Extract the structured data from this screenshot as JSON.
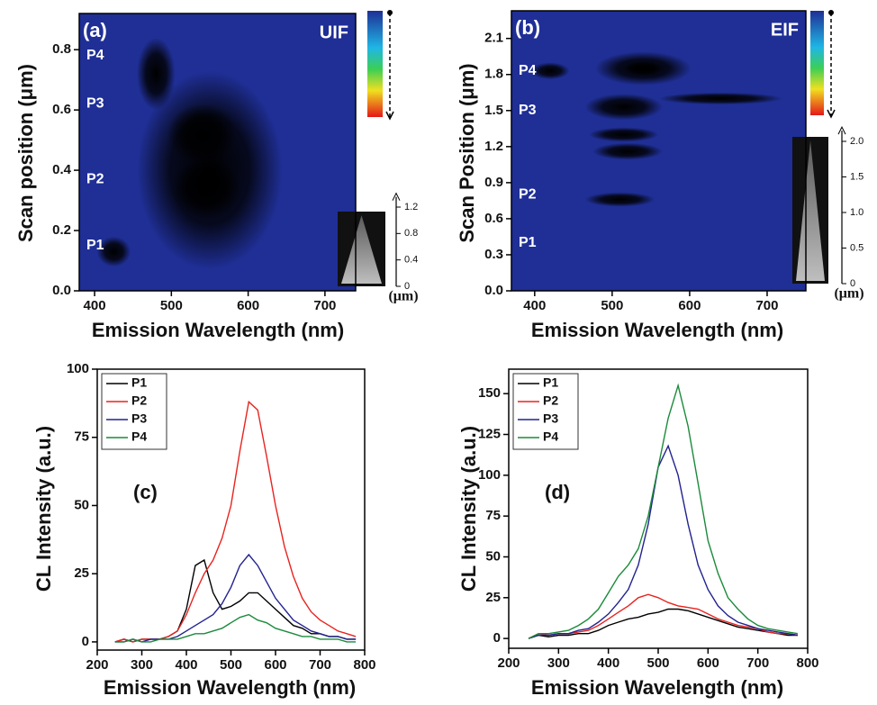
{
  "chart_data": [
    {
      "type": "heatmap",
      "panel_label": "(a)",
      "mode_label": "UIF",
      "x_label": "Emission Wavelength (nm)",
      "y_label": "Scan position (μm)",
      "xlim": [
        380,
        740
      ],
      "xticks": [
        400,
        500,
        600,
        700
      ],
      "ylim": [
        0,
        0.92
      ],
      "yticks": [
        {
          "value": 0,
          "label": "0.0"
        },
        0.2,
        0.4,
        0.6,
        0.8
      ],
      "background": "#1f2f96",
      "spots": [
        {
          "x": 550,
          "y": 0.4,
          "dx": 95,
          "dy": 0.33,
          "intensity": 0.35
        },
        {
          "x": 540,
          "y": 0.52,
          "dx": 45,
          "dy": 0.1,
          "intensity": 0.55
        },
        {
          "x": 545,
          "y": 0.34,
          "dx": 45,
          "dy": 0.1,
          "intensity": 0.52
        },
        {
          "x": 425,
          "y": 0.13,
          "dx": 22,
          "dy": 0.05,
          "intensity": 0.42
        },
        {
          "x": 480,
          "y": 0.72,
          "dx": 25,
          "dy": 0.12,
          "intensity": 0.2
        }
      ],
      "annotations": [
        {
          "text": "P4",
          "y": 0.78
        },
        {
          "text": "P3",
          "y": 0.62
        },
        {
          "text": "P2",
          "y": 0.37
        },
        {
          "text": "P1",
          "y": 0.15
        }
      ],
      "inset": {
        "ylim": [
          0,
          1.3
        ],
        "yticks": [
          0,
          0.4,
          0.8,
          1.2
        ],
        "label": "(μm)"
      }
    },
    {
      "type": "heatmap",
      "panel_label": "(b)",
      "mode_label": "EIF",
      "x_label": "Emission Wavelength (nm)",
      "y_label": "Scan Position (μm)",
      "xlim": [
        370,
        750
      ],
      "xticks": [
        400,
        500,
        600,
        700
      ],
      "ylim": [
        0,
        2.33
      ],
      "yticks": [
        {
          "value": 0,
          "label": "0.0"
        },
        0.3,
        0.6,
        0.9,
        1.2,
        1.5,
        1.8,
        2.1
      ],
      "background": "#1f2f96",
      "spots": [
        {
          "x": 540,
          "y": 1.85,
          "dx": 62,
          "dy": 0.14,
          "intensity": 0.6
        },
        {
          "x": 540,
          "y": 1.85,
          "dx": 25,
          "dy": 0.06,
          "intensity": 1.0
        },
        {
          "x": 515,
          "y": 1.53,
          "dx": 50,
          "dy": 0.11,
          "intensity": 0.6
        },
        {
          "x": 515,
          "y": 1.3,
          "dx": 45,
          "dy": 0.06,
          "intensity": 0.35
        },
        {
          "x": 520,
          "y": 1.16,
          "dx": 45,
          "dy": 0.07,
          "intensity": 0.38
        },
        {
          "x": 420,
          "y": 1.83,
          "dx": 25,
          "dy": 0.07,
          "intensity": 0.3
        },
        {
          "x": 510,
          "y": 0.76,
          "dx": 45,
          "dy": 0.06,
          "intensity": 0.2
        },
        {
          "x": 640,
          "y": 1.6,
          "dx": 80,
          "dy": 0.05,
          "intensity": 0.15
        }
      ],
      "annotations": [
        {
          "text": "P4",
          "y": 1.83
        },
        {
          "text": "P3",
          "y": 1.5
        },
        {
          "text": "P2",
          "y": 0.8
        },
        {
          "text": "P1",
          "y": 0.4
        }
      ],
      "inset": {
        "ylim": [
          0,
          2.1
        ],
        "yticks": [
          0,
          0.5,
          {
            "value": 1,
            "label": "1.0"
          },
          1.5,
          {
            "value": 2,
            "label": "2.0"
          }
        ],
        "label": "(μm)"
      }
    },
    {
      "type": "line",
      "panel_label": "(c)",
      "x_label": "Emission Wavelength (nm)",
      "y_label": "CL Intensity (a.u.)",
      "xlim": [
        200,
        800
      ],
      "xticks": [
        200,
        300,
        400,
        500,
        600,
        700,
        800
      ],
      "ylim": [
        -3,
        100
      ],
      "yticks": [
        0,
        25,
        50,
        75,
        100
      ],
      "x": [
        240,
        260,
        280,
        300,
        320,
        340,
        360,
        380,
        400,
        420,
        440,
        460,
        480,
        500,
        520,
        540,
        560,
        580,
        600,
        620,
        640,
        660,
        680,
        700,
        720,
        740,
        760,
        780
      ],
      "series": [
        {
          "name": "P1",
          "color": "#000000",
          "values": [
            0,
            1,
            0,
            1,
            1,
            1,
            2,
            4,
            12,
            28,
            30,
            18,
            12,
            13,
            15,
            18,
            18,
            15,
            12,
            9,
            6,
            5,
            3,
            3,
            2,
            2,
            1,
            1
          ]
        },
        {
          "name": "P2",
          "color": "#e8231f",
          "values": [
            0,
            1,
            0,
            1,
            1,
            1,
            2,
            4,
            10,
            18,
            25,
            30,
            38,
            50,
            70,
            88,
            85,
            68,
            50,
            35,
            24,
            16,
            11,
            8,
            6,
            4,
            3,
            2
          ]
        },
        {
          "name": "P3",
          "color": "#22228f",
          "values": [
            0,
            0,
            1,
            0,
            1,
            1,
            1,
            2,
            4,
            6,
            8,
            10,
            14,
            20,
            28,
            32,
            28,
            22,
            16,
            12,
            8,
            6,
            4,
            3,
            2,
            2,
            1,
            1
          ]
        },
        {
          "name": "P4",
          "color": "#1b8a3a",
          "values": [
            0,
            0,
            1,
            0,
            0,
            1,
            1,
            1,
            2,
            3,
            3,
            4,
            5,
            7,
            9,
            10,
            8,
            7,
            5,
            4,
            3,
            2,
            2,
            1,
            1,
            1,
            0,
            0
          ]
        }
      ]
    },
    {
      "type": "line",
      "panel_label": "(d)",
      "x_label": "Emission Wavelength (nm)",
      "y_label": "CL Intensity (a.u.)",
      "xlim": [
        200,
        800
      ],
      "xticks": [
        200,
        300,
        400,
        500,
        600,
        700,
        800
      ],
      "ylim": [
        -6,
        165
      ],
      "yticks": [
        0,
        25,
        50,
        75,
        100,
        125,
        150
      ],
      "x": [
        240,
        260,
        280,
        300,
        320,
        340,
        360,
        380,
        400,
        420,
        440,
        460,
        480,
        500,
        520,
        540,
        560,
        580,
        600,
        620,
        640,
        660,
        680,
        700,
        720,
        740,
        760,
        780
      ],
      "series": [
        {
          "name": "P1",
          "color": "#000000",
          "values": [
            0,
            2,
            1,
            2,
            2,
            3,
            3,
            5,
            8,
            10,
            12,
            13,
            15,
            16,
            18,
            18,
            17,
            15,
            13,
            11,
            9,
            7,
            6,
            5,
            4,
            3,
            2,
            2
          ]
        },
        {
          "name": "P2",
          "color": "#e8231f",
          "values": [
            0,
            3,
            2,
            3,
            3,
            4,
            5,
            8,
            12,
            16,
            20,
            25,
            27,
            25,
            22,
            20,
            19,
            18,
            15,
            12,
            10,
            8,
            7,
            6,
            4,
            3,
            3,
            2
          ]
        },
        {
          "name": "P3",
          "color": "#22228f",
          "values": [
            0,
            2,
            2,
            3,
            3,
            5,
            6,
            10,
            15,
            22,
            30,
            45,
            70,
            105,
            118,
            100,
            70,
            45,
            30,
            20,
            14,
            10,
            8,
            6,
            5,
            4,
            3,
            2
          ]
        },
        {
          "name": "P4",
          "color": "#1b8a3a",
          "values": [
            0,
            3,
            3,
            4,
            5,
            8,
            12,
            18,
            28,
            38,
            45,
            55,
            75,
            105,
            135,
            155,
            130,
            95,
            60,
            40,
            25,
            18,
            12,
            8,
            6,
            5,
            4,
            3
          ]
        }
      ]
    }
  ]
}
